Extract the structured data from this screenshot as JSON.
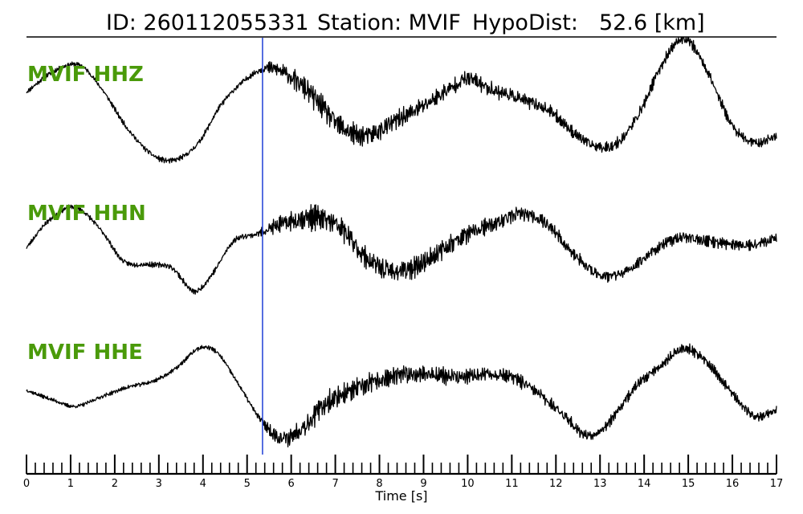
{
  "header": {
    "id_text": "ID: 260112055331",
    "station_text": "Station: MVIF",
    "hypodist_text": "HypoDist:",
    "hypodist_value": "52.6 [km]"
  },
  "chart_data": {
    "type": "line",
    "title": "ID: 260112055331   Station: MVIF   HypoDist:     52.6 [km]",
    "xlabel": "Time [s]",
    "ylabel": "",
    "xlim": [
      0,
      17
    ],
    "x_ticks": [
      "0",
      "1",
      "2",
      "3",
      "4",
      "5",
      "6",
      "7",
      "8",
      "9",
      "10",
      "11",
      "12",
      "13",
      "14",
      "15",
      "16",
      "17"
    ],
    "minor_tick_step": 0.2,
    "grid": false,
    "legend": "none",
    "label_color": "#4a9a0a",
    "trace_color": "#000000",
    "pick_color": "#1f3fd6",
    "pick_time": 5.35,
    "series": [
      {
        "name": "MVIF HHZ",
        "noise_seed": 11,
        "noise_points": [
          [
            0,
            0.5
          ],
          [
            5.2,
            0.6
          ],
          [
            5.6,
            1.6
          ],
          [
            6.6,
            2.6
          ],
          [
            8.0,
            2.2
          ],
          [
            12.0,
            1.3
          ],
          [
            17,
            1.0
          ]
        ],
        "knots": [
          [
            0,
            0.2
          ],
          [
            0.6,
            0.8
          ],
          [
            1.2,
            1.0
          ],
          [
            1.7,
            0.3
          ],
          [
            2.3,
            -0.9
          ],
          [
            2.9,
            -1.7
          ],
          [
            3.4,
            -1.8
          ],
          [
            3.9,
            -1.3
          ],
          [
            4.4,
            -0.2
          ],
          [
            4.9,
            0.5
          ],
          [
            5.4,
            0.9
          ],
          [
            5.8,
            0.8
          ],
          [
            6.4,
            0.2
          ],
          [
            7.1,
            -0.8
          ],
          [
            7.7,
            -1.1
          ],
          [
            8.3,
            -0.7
          ],
          [
            9.0,
            -0.2
          ],
          [
            9.6,
            0.3
          ],
          [
            10.0,
            0.6
          ],
          [
            10.5,
            0.3
          ],
          [
            11.2,
            0.0
          ],
          [
            11.9,
            -0.4
          ],
          [
            12.4,
            -1.0
          ],
          [
            12.9,
            -1.4
          ],
          [
            13.4,
            -1.3
          ],
          [
            13.9,
            -0.4
          ],
          [
            14.4,
            1.0
          ],
          [
            14.9,
            1.8
          ],
          [
            15.4,
            0.9
          ],
          [
            16.0,
            -0.8
          ],
          [
            16.5,
            -1.3
          ],
          [
            17,
            -1.1
          ]
        ]
      },
      {
        "name": "MVIF HHN",
        "noise_seed": 23,
        "noise_points": [
          [
            0,
            0.5
          ],
          [
            5.2,
            0.6
          ],
          [
            5.6,
            1.6
          ],
          [
            6.6,
            2.8
          ],
          [
            8.0,
            2.4
          ],
          [
            12.0,
            1.4
          ],
          [
            17,
            1.1
          ]
        ],
        "knots": [
          [
            0,
            -0.2
          ],
          [
            0.5,
            0.6
          ],
          [
            1.1,
            1.0
          ],
          [
            1.7,
            0.3
          ],
          [
            2.2,
            -0.6
          ],
          [
            2.8,
            -0.7
          ],
          [
            3.3,
            -0.8
          ],
          [
            3.8,
            -1.5
          ],
          [
            4.2,
            -1.0
          ],
          [
            4.7,
            0.0
          ],
          [
            5.2,
            0.2
          ],
          [
            5.8,
            0.5
          ],
          [
            6.5,
            0.7
          ],
          [
            7.1,
            0.4
          ],
          [
            7.7,
            -0.5
          ],
          [
            8.3,
            -0.9
          ],
          [
            8.9,
            -0.7
          ],
          [
            9.5,
            -0.2
          ],
          [
            10.0,
            0.2
          ],
          [
            10.6,
            0.5
          ],
          [
            11.2,
            0.8
          ],
          [
            11.8,
            0.5
          ],
          [
            12.4,
            -0.4
          ],
          [
            13.0,
            -1.0
          ],
          [
            13.6,
            -0.9
          ],
          [
            14.2,
            -0.3
          ],
          [
            14.8,
            0.1
          ],
          [
            15.4,
            0.0
          ],
          [
            16.0,
            -0.1
          ],
          [
            16.5,
            -0.1
          ],
          [
            17,
            0.1
          ]
        ]
      },
      {
        "name": "MVIF HHE",
        "noise_seed": 37,
        "noise_points": [
          [
            0,
            0.4
          ],
          [
            5.2,
            0.5
          ],
          [
            5.6,
            1.8
          ],
          [
            6.6,
            2.6
          ],
          [
            8.0,
            2.2
          ],
          [
            12.0,
            1.3
          ],
          [
            17,
            1.0
          ]
        ],
        "knots": [
          [
            0,
            -0.2
          ],
          [
            0.6,
            -0.5
          ],
          [
            1.1,
            -0.7
          ],
          [
            1.7,
            -0.4
          ],
          [
            2.3,
            -0.1
          ],
          [
            2.9,
            0.1
          ],
          [
            3.4,
            0.5
          ],
          [
            3.9,
            1.1
          ],
          [
            4.3,
            1.0
          ],
          [
            4.8,
            0.0
          ],
          [
            5.3,
            -1.1
          ],
          [
            5.8,
            -1.7
          ],
          [
            6.3,
            -1.3
          ],
          [
            6.8,
            -0.6
          ],
          [
            7.4,
            -0.2
          ],
          [
            8.0,
            0.1
          ],
          [
            8.6,
            0.3
          ],
          [
            9.2,
            0.3
          ],
          [
            9.8,
            0.2
          ],
          [
            10.4,
            0.3
          ],
          [
            11.0,
            0.2
          ],
          [
            11.6,
            -0.3
          ],
          [
            12.2,
            -1.0
          ],
          [
            12.7,
            -1.6
          ],
          [
            13.2,
            -1.2
          ],
          [
            13.8,
            -0.1
          ],
          [
            14.4,
            0.6
          ],
          [
            14.9,
            1.1
          ],
          [
            15.4,
            0.7
          ],
          [
            16.0,
            -0.3
          ],
          [
            16.5,
            -1.0
          ],
          [
            17,
            -0.8
          ]
        ]
      }
    ]
  }
}
